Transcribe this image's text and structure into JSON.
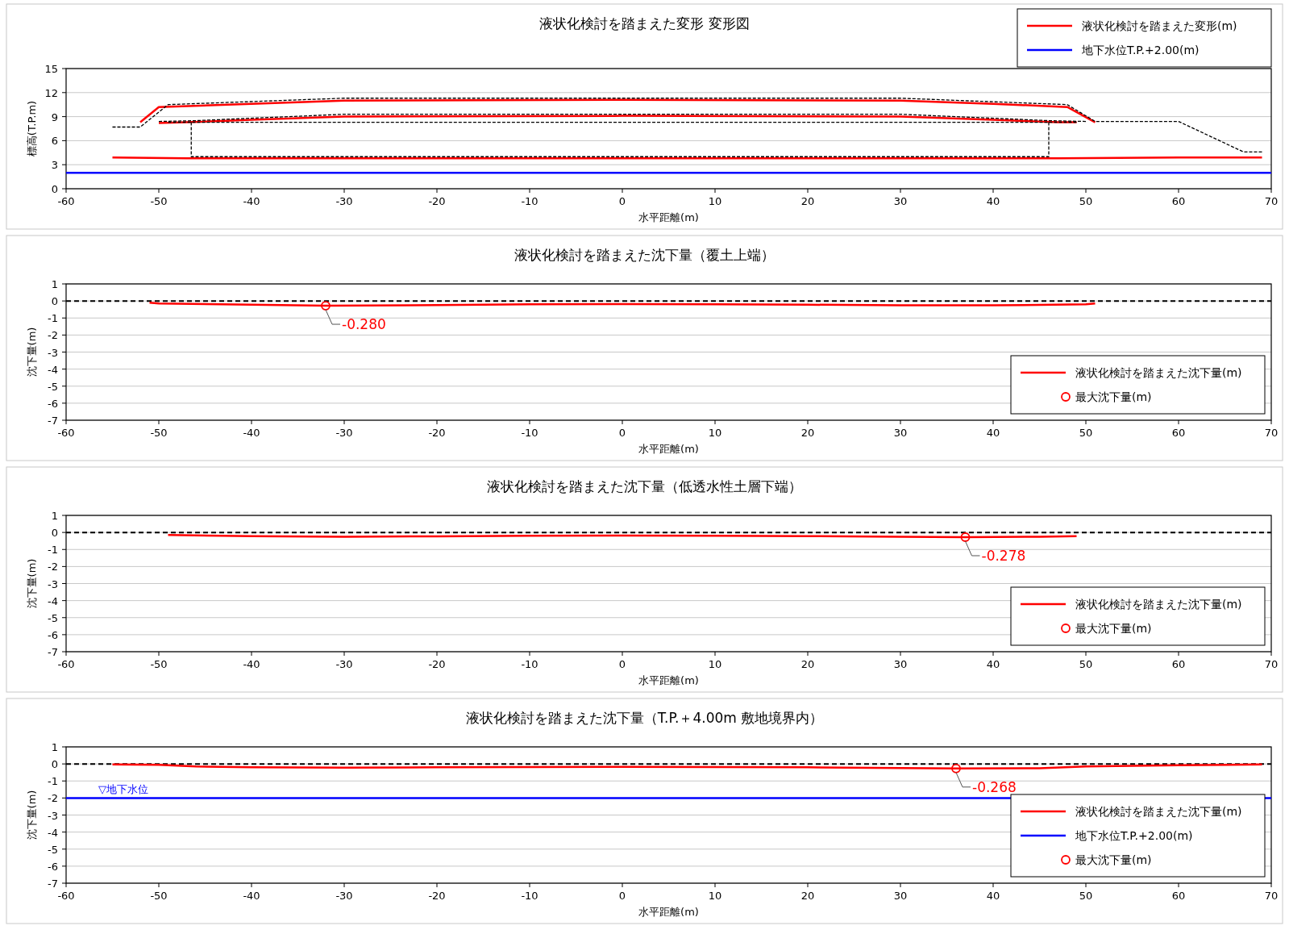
{
  "chart_data": [
    {
      "type": "line",
      "title": "液状化検討を踏まえた変形  変形図",
      "xlabel": "水平距離(m)",
      "ylabel": "標高(T.P.m)",
      "xlim": [
        -60,
        70
      ],
      "ylim": [
        0,
        15
      ],
      "xticks": [
        -60,
        -50,
        -40,
        -30,
        -20,
        -10,
        0,
        10,
        20,
        30,
        40,
        50,
        60,
        70
      ],
      "yticks": [
        0,
        3,
        6,
        9,
        12,
        15
      ],
      "grid": "y",
      "legend": "top right",
      "series": [
        {
          "name": "液状化検討を踏まえた変形(m)",
          "color": "#ff0000",
          "x": [
            -52,
            -50,
            -40,
            -30,
            0,
            30,
            40,
            48,
            51
          ],
          "values": [
            8.3,
            10.2,
            10.6,
            11.0,
            11.1,
            11.0,
            10.6,
            10.2,
            8.3
          ]
        },
        {
          "color": "#ff0000",
          "x": [
            -50,
            -47,
            -40,
            -30,
            0,
            30,
            40,
            47,
            49
          ],
          "values": [
            8.2,
            8.3,
            8.6,
            9.0,
            9.1,
            9.0,
            8.6,
            8.3,
            8.3
          ]
        },
        {
          "color": "#ff0000",
          "x": [
            -55,
            -47,
            0,
            47,
            60,
            69
          ],
          "values": [
            3.9,
            3.8,
            3.8,
            3.8,
            3.9,
            3.9
          ]
        },
        {
          "color": "#000000",
          "line_style": "dashed",
          "x": [
            -55,
            -52,
            -49,
            -30,
            30,
            48,
            51,
            60,
            67,
            69
          ],
          "values": [
            7.7,
            7.7,
            10.5,
            11.3,
            11.3,
            10.5,
            8.4,
            8.4,
            4.6,
            4.6
          ]
        },
        {
          "color": "#000000",
          "line_style": "dashed",
          "x": [
            -50,
            -46,
            -30,
            30,
            46,
            50
          ],
          "values": [
            8.4,
            8.5,
            9.3,
            9.3,
            8.5,
            8.4
          ]
        },
        {
          "color": "#000000",
          "line_style": "dashed",
          "x": [
            -49,
            49
          ],
          "values": [
            8.3,
            8.3
          ]
        },
        {
          "color": "#000000",
          "line_style": "dashed",
          "x": [
            -46.5,
            -46.5,
            46,
            46
          ],
          "values": [
            8.3,
            4.0,
            4.0,
            8.3
          ]
        },
        {
          "name": "地下水位T.P.+2.00(m)",
          "color": "#0000ff",
          "x": [
            -60,
            70
          ],
          "values": [
            2,
            2
          ]
        }
      ]
    },
    {
      "type": "line",
      "title": "液状化検討を踏まえた沈下量（覆土上端）",
      "xlabel": "水平距離(m)",
      "ylabel": "沈下量(m)",
      "xlim": [
        -60,
        70
      ],
      "ylim": [
        -7,
        1
      ],
      "xticks": [
        -60,
        -50,
        -40,
        -30,
        -20,
        -10,
        0,
        10,
        20,
        30,
        40,
        50,
        60,
        70
      ],
      "yticks": [
        -7,
        -6,
        -5,
        -4,
        -3,
        -2,
        -1,
        0,
        1
      ],
      "grid": "y",
      "legend": "bottom right",
      "ref_lines": [
        {
          "axis": "y",
          "value": 0,
          "color": "#000000",
          "line_style": "dashed"
        }
      ],
      "annotations": [
        {
          "text": "-0.280",
          "x": -32,
          "y": -0.28
        }
      ],
      "series": [
        {
          "name": "液状化検討を踏まえた沈下量(m)",
          "color": "#ff0000",
          "x": [
            -51,
            -50,
            -40,
            -32,
            -20,
            -10,
            0,
            10,
            20,
            30,
            40,
            50,
            51
          ],
          "values": [
            -0.1,
            -0.15,
            -0.22,
            -0.28,
            -0.24,
            -0.2,
            -0.18,
            -0.2,
            -0.22,
            -0.26,
            -0.26,
            -0.2,
            -0.15
          ]
        },
        {
          "name": "最大沈下量(m)",
          "type": "scatter",
          "marker": "circle",
          "color": "#ff0000",
          "x": [
            -32
          ],
          "values": [
            -0.28
          ]
        }
      ]
    },
    {
      "type": "line",
      "title": "液状化検討を踏まえた沈下量（低透水性土層下端）",
      "xlabel": "水平距離(m)",
      "ylabel": "沈下量(m)",
      "xlim": [
        -60,
        70
      ],
      "ylim": [
        -7,
        1
      ],
      "xticks": [
        -60,
        -50,
        -40,
        -30,
        -20,
        -10,
        0,
        10,
        20,
        30,
        40,
        50,
        60,
        70
      ],
      "yticks": [
        -7,
        -6,
        -5,
        -4,
        -3,
        -2,
        -1,
        0,
        1
      ],
      "grid": "y",
      "legend": "bottom right",
      "ref_lines": [
        {
          "axis": "y",
          "value": 0,
          "color": "#000000",
          "line_style": "dashed"
        }
      ],
      "annotations": [
        {
          "text": "-0.278",
          "x": 37,
          "y": -0.278
        }
      ],
      "series": [
        {
          "name": "液状化検討を踏まえた沈下量(m)",
          "color": "#ff0000",
          "x": [
            -49,
            -40,
            -30,
            -20,
            -10,
            0,
            10,
            20,
            30,
            37,
            45,
            49
          ],
          "values": [
            -0.15,
            -0.22,
            -0.25,
            -0.23,
            -0.19,
            -0.18,
            -0.2,
            -0.22,
            -0.25,
            -0.278,
            -0.25,
            -0.22
          ]
        },
        {
          "name": "最大沈下量(m)",
          "type": "scatter",
          "marker": "circle",
          "color": "#ff0000",
          "x": [
            37
          ],
          "values": [
            -0.278
          ]
        }
      ]
    },
    {
      "type": "line",
      "title": "液状化検討を踏まえた沈下量（T.P.＋4.00m 敷地境界内）",
      "xlabel": "水平距離(m)",
      "ylabel": "沈下量(m)",
      "xlim": [
        -60,
        70
      ],
      "ylim": [
        -7,
        1
      ],
      "xticks": [
        -60,
        -50,
        -40,
        -30,
        -20,
        -10,
        0,
        10,
        20,
        30,
        40,
        50,
        60,
        70
      ],
      "yticks": [
        -7,
        -6,
        -5,
        -4,
        -3,
        -2,
        -1,
        0,
        1
      ],
      "grid": "y",
      "legend": "bottom right",
      "ref_lines": [
        {
          "axis": "y",
          "value": 0,
          "color": "#000000",
          "line_style": "dashed"
        }
      ],
      "annotations": [
        {
          "text": "-0.268",
          "x": 36,
          "y": -0.268
        },
        "▽地下水位"
      ],
      "series": [
        {
          "name": "液状化検討を踏まえた沈下量(m)",
          "color": "#ff0000",
          "x": [
            -55,
            -50,
            -46,
            -40,
            -30,
            -20,
            -10,
            0,
            10,
            20,
            30,
            36,
            45,
            50,
            60,
            69
          ],
          "values": [
            -0.03,
            -0.05,
            -0.15,
            -0.2,
            -0.22,
            -0.2,
            -0.18,
            -0.17,
            -0.18,
            -0.2,
            -0.24,
            -0.268,
            -0.25,
            -0.15,
            -0.08,
            -0.03
          ]
        },
        {
          "name": "地下水位T.P.+2.00(m)",
          "color": "#0000ff",
          "x": [
            -60,
            70
          ],
          "values": [
            -2,
            -2
          ]
        },
        {
          "name": "最大沈下量(m)",
          "type": "scatter",
          "marker": "circle",
          "color": "#ff0000",
          "x": [
            36
          ],
          "values": [
            -0.268
          ]
        }
      ]
    }
  ]
}
